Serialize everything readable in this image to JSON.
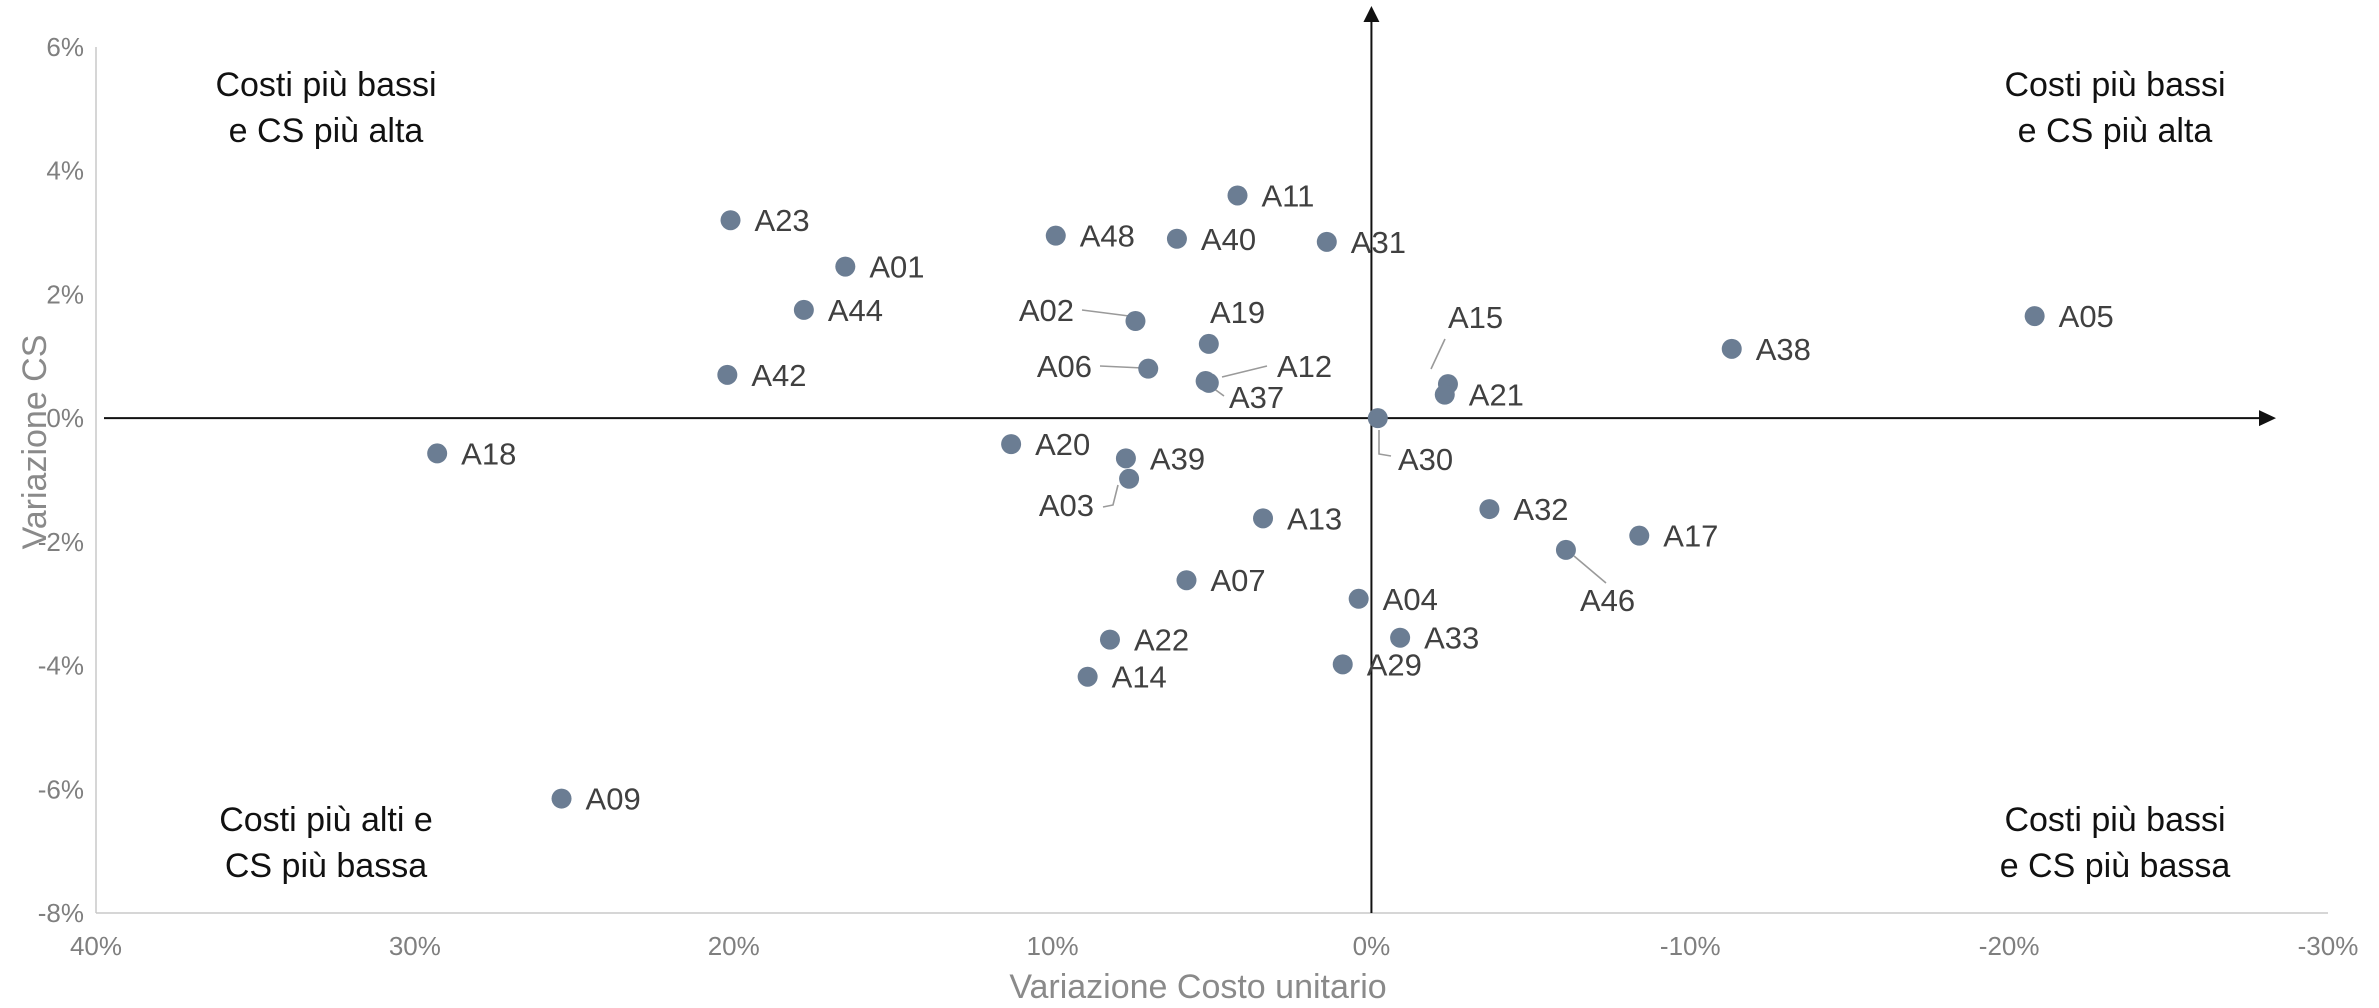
{
  "chart_data": {
    "type": "scatter",
    "xlabel": "Variazione Costo unitario",
    "ylabel": "Variazione CS",
    "x_axis_reversed": true,
    "xlim": [
      40,
      -30
    ],
    "ylim": [
      -8,
      6
    ],
    "x_ticks": [
      "40%",
      "30%",
      "20%",
      "10%",
      "0%",
      "-10%",
      "-20%",
      "-30%"
    ],
    "y_ticks": [
      "6%",
      "4%",
      "2%",
      "0%",
      "-2%",
      "-4%",
      "-6%",
      "-8%"
    ],
    "grid": false,
    "point_color": "#6b7d93",
    "quadrant_labels": {
      "top_left": [
        "Costi più bassi",
        "e CS più alta"
      ],
      "top_right": [
        "Costi più bassi",
        "e CS più alta"
      ],
      "bottom_left": [
        "Costi più alti e",
        "CS più bassa"
      ],
      "bottom_right": [
        "Costi più bassi",
        "e CS più bassa"
      ]
    },
    "points": [
      {
        "label": "A05",
        "x": -20.8,
        "y": 1.65
      },
      {
        "label": "A38",
        "x": -11.3,
        "y": 1.12
      },
      {
        "label": "A15",
        "x": -2.4,
        "y": 0.55
      },
      {
        "label": "A21",
        "x": -2.3,
        "y": 0.38
      },
      {
        "label": "A30",
        "x": -0.2,
        "y": 0.0
      },
      {
        "label": "A32",
        "x": -3.7,
        "y": -1.47
      },
      {
        "label": "A46",
        "x": -6.1,
        "y": -2.13
      },
      {
        "label": "A17",
        "x": -8.4,
        "y": -1.9
      },
      {
        "label": "A04",
        "x": 0.4,
        "y": -2.92
      },
      {
        "label": "A33",
        "x": -0.9,
        "y": -3.55
      },
      {
        "label": "A29",
        "x": 0.9,
        "y": -3.98
      },
      {
        "label": "A11",
        "x": 4.2,
        "y": 3.6
      },
      {
        "label": "A31",
        "x": 1.4,
        "y": 2.85
      },
      {
        "label": "A40",
        "x": 6.1,
        "y": 2.9
      },
      {
        "label": "A48",
        "x": 9.9,
        "y": 2.95
      },
      {
        "label": "A19",
        "x": 5.1,
        "y": 1.2
      },
      {
        "label": "A02",
        "x": 7.4,
        "y": 1.57
      },
      {
        "label": "A06",
        "x": 7.0,
        "y": 0.8
      },
      {
        "label": "A12",
        "x": 5.2,
        "y": 0.6
      },
      {
        "label": "A37",
        "x": 5.1,
        "y": 0.57
      },
      {
        "label": "A20",
        "x": 11.3,
        "y": -0.42
      },
      {
        "label": "A39",
        "x": 7.7,
        "y": -0.65
      },
      {
        "label": "A03",
        "x": 7.6,
        "y": -0.98
      },
      {
        "label": "A13",
        "x": 3.4,
        "y": -1.62
      },
      {
        "label": "A07",
        "x": 5.8,
        "y": -2.62
      },
      {
        "label": "A22",
        "x": 8.2,
        "y": -3.58
      },
      {
        "label": "A14",
        "x": 8.9,
        "y": -4.18
      },
      {
        "label": "A23",
        "x": 20.1,
        "y": 3.2
      },
      {
        "label": "A01",
        "x": 16.5,
        "y": 2.45
      },
      {
        "label": "A44",
        "x": 17.8,
        "y": 1.75
      },
      {
        "label": "A42",
        "x": 20.2,
        "y": 0.7
      },
      {
        "label": "A18",
        "x": 29.3,
        "y": -0.57
      },
      {
        "label": "A09",
        "x": 25.4,
        "y": -6.15
      }
    ]
  }
}
